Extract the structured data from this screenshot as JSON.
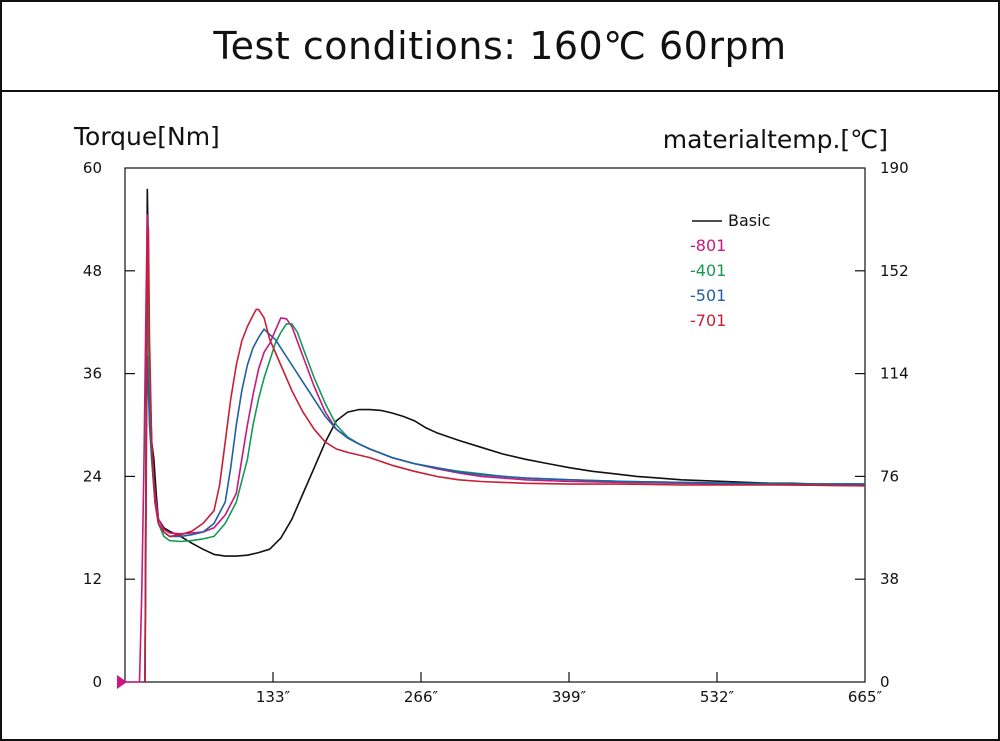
{
  "title": "Test conditions: 160℃ 60rpm",
  "chart_data": {
    "type": "line",
    "title": "Test conditions: 160℃ 60rpm",
    "ylabel": "Torque[Nm]",
    "y2label": "materialtemp.[℃]",
    "xlabel": "",
    "xlim": [
      0,
      665
    ],
    "ylim": [
      0,
      60
    ],
    "y2lim": [
      0,
      190
    ],
    "x_ticks": [
      133,
      266,
      399,
      532,
      665
    ],
    "x_tick_labels": [
      "133″",
      "266″",
      "399″",
      "532″",
      "665″"
    ],
    "y_ticks": [
      0,
      12,
      24,
      36,
      48,
      60
    ],
    "y_tick_labels": [
      "0",
      "12",
      "24",
      "36",
      "48",
      "60"
    ],
    "y2_ticks": [
      0,
      38,
      76,
      114,
      152,
      190
    ],
    "y2_tick_labels": [
      "0",
      "38",
      "76",
      "114",
      "152",
      "190"
    ],
    "grid": false,
    "legend_position": "top-right",
    "series": [
      {
        "name": "Basic",
        "color": "#111111",
        "legend_prefix": "—— ",
        "points": [
          [
            18,
            0
          ],
          [
            19,
            30
          ],
          [
            20,
            57.5
          ],
          [
            21,
            50
          ],
          [
            22,
            36
          ],
          [
            24,
            28
          ],
          [
            26,
            26
          ],
          [
            28,
            22
          ],
          [
            30,
            19
          ],
          [
            35,
            18
          ],
          [
            40,
            17.6
          ],
          [
            50,
            17
          ],
          [
            60,
            16.2
          ],
          [
            70,
            15.5
          ],
          [
            80,
            14.9
          ],
          [
            90,
            14.7
          ],
          [
            100,
            14.7
          ],
          [
            110,
            14.8
          ],
          [
            120,
            15.1
          ],
          [
            130,
            15.5
          ],
          [
            140,
            16.8
          ],
          [
            150,
            19
          ],
          [
            160,
            22
          ],
          [
            170,
            25
          ],
          [
            180,
            28
          ],
          [
            190,
            30.5
          ],
          [
            200,
            31.5
          ],
          [
            210,
            31.8
          ],
          [
            220,
            31.8
          ],
          [
            230,
            31.7
          ],
          [
            240,
            31.4
          ],
          [
            250,
            31
          ],
          [
            260,
            30.5
          ],
          [
            270,
            29.7
          ],
          [
            280,
            29.1
          ],
          [
            300,
            28.2
          ],
          [
            320,
            27.4
          ],
          [
            340,
            26.6
          ],
          [
            360,
            26
          ],
          [
            380,
            25.5
          ],
          [
            400,
            25
          ],
          [
            420,
            24.6
          ],
          [
            440,
            24.3
          ],
          [
            460,
            24
          ],
          [
            480,
            23.8
          ],
          [
            500,
            23.6
          ],
          [
            520,
            23.5
          ],
          [
            540,
            23.4
          ],
          [
            560,
            23.3
          ],
          [
            580,
            23.2
          ],
          [
            600,
            23.2
          ],
          [
            620,
            23.1
          ],
          [
            640,
            23.1
          ],
          [
            665,
            23.1
          ]
        ]
      },
      {
        "name": "-801",
        "color": "#c8187e",
        "legend_prefix": "",
        "points": [
          [
            0,
            0
          ],
          [
            10,
            0
          ],
          [
            13,
            0
          ],
          [
            15,
            10
          ],
          [
            17,
            25
          ],
          [
            18,
            35
          ],
          [
            19,
            45
          ],
          [
            20,
            54.5
          ],
          [
            21,
            45
          ],
          [
            22,
            34
          ],
          [
            24,
            27
          ],
          [
            27,
            22
          ],
          [
            30,
            19
          ],
          [
            35,
            17.8
          ],
          [
            40,
            17.4
          ],
          [
            50,
            17.3
          ],
          [
            60,
            17.4
          ],
          [
            70,
            17.5
          ],
          [
            80,
            18
          ],
          [
            90,
            19.5
          ],
          [
            100,
            22
          ],
          [
            105,
            26
          ],
          [
            110,
            30
          ],
          [
            115,
            33.5
          ],
          [
            120,
            36.5
          ],
          [
            125,
            38.5
          ],
          [
            130,
            39.5
          ],
          [
            135,
            41
          ],
          [
            140,
            42.5
          ],
          [
            145,
            42.4
          ],
          [
            150,
            41.5
          ],
          [
            160,
            38
          ],
          [
            170,
            34.5
          ],
          [
            180,
            31.5
          ],
          [
            190,
            29.5
          ],
          [
            200,
            28.5
          ],
          [
            210,
            27.8
          ],
          [
            220,
            27.2
          ],
          [
            240,
            26.2
          ],
          [
            260,
            25.5
          ],
          [
            280,
            24.9
          ],
          [
            300,
            24.4
          ],
          [
            320,
            24
          ],
          [
            340,
            23.8
          ],
          [
            360,
            23.6
          ],
          [
            380,
            23.5
          ],
          [
            400,
            23.4
          ],
          [
            450,
            23.3
          ],
          [
            500,
            23.2
          ],
          [
            550,
            23.1
          ],
          [
            600,
            23
          ],
          [
            665,
            22.9
          ]
        ]
      },
      {
        "name": "-401",
        "color": "#159a55",
        "legend_prefix": "",
        "points": [
          [
            18,
            0
          ],
          [
            19,
            28
          ],
          [
            20,
            46
          ],
          [
            21,
            40
          ],
          [
            22,
            32
          ],
          [
            24,
            26
          ],
          [
            27,
            21
          ],
          [
            30,
            18.5
          ],
          [
            35,
            17
          ],
          [
            40,
            16.5
          ],
          [
            50,
            16.4
          ],
          [
            60,
            16.5
          ],
          [
            70,
            16.7
          ],
          [
            80,
            17
          ],
          [
            90,
            18.5
          ],
          [
            100,
            21
          ],
          [
            110,
            26
          ],
          [
            115,
            30
          ],
          [
            120,
            33
          ],
          [
            125,
            35.5
          ],
          [
            130,
            37.5
          ],
          [
            135,
            39.5
          ],
          [
            140,
            40.8
          ],
          [
            145,
            41.8
          ],
          [
            150,
            41.8
          ],
          [
            155,
            40.8
          ],
          [
            160,
            39
          ],
          [
            170,
            35.5
          ],
          [
            180,
            32.5
          ],
          [
            190,
            30
          ],
          [
            200,
            28.6
          ],
          [
            210,
            27.8
          ],
          [
            220,
            27.2
          ],
          [
            240,
            26.2
          ],
          [
            260,
            25.5
          ],
          [
            280,
            25
          ],
          [
            300,
            24.6
          ],
          [
            320,
            24.3
          ],
          [
            340,
            24
          ],
          [
            360,
            23.8
          ],
          [
            400,
            23.6
          ],
          [
            450,
            23.4
          ],
          [
            500,
            23.3
          ],
          [
            550,
            23.2
          ],
          [
            600,
            23.1
          ],
          [
            665,
            23.1
          ]
        ]
      },
      {
        "name": "-501",
        "color": "#1f5fa6",
        "legend_prefix": "",
        "points": [
          [
            18,
            0
          ],
          [
            19,
            26
          ],
          [
            20,
            38
          ],
          [
            21,
            34
          ],
          [
            22,
            30
          ],
          [
            24,
            26
          ],
          [
            27,
            21
          ],
          [
            30,
            18.5
          ],
          [
            35,
            17.5
          ],
          [
            40,
            17
          ],
          [
            50,
            17
          ],
          [
            60,
            17.2
          ],
          [
            70,
            17.5
          ],
          [
            80,
            18.5
          ],
          [
            90,
            21
          ],
          [
            95,
            25
          ],
          [
            100,
            30
          ],
          [
            105,
            34
          ],
          [
            110,
            37
          ],
          [
            115,
            39
          ],
          [
            120,
            40.2
          ],
          [
            125,
            41.2
          ],
          [
            128,
            40.8
          ],
          [
            135,
            40
          ],
          [
            140,
            39
          ],
          [
            150,
            37
          ],
          [
            160,
            35
          ],
          [
            170,
            33
          ],
          [
            180,
            31
          ],
          [
            190,
            29.5
          ],
          [
            200,
            28.5
          ],
          [
            210,
            27.8
          ],
          [
            220,
            27.2
          ],
          [
            240,
            26.2
          ],
          [
            260,
            25.5
          ],
          [
            280,
            25
          ],
          [
            300,
            24.5
          ],
          [
            320,
            24.2
          ],
          [
            340,
            24
          ],
          [
            360,
            23.8
          ],
          [
            400,
            23.6
          ],
          [
            450,
            23.4
          ],
          [
            500,
            23.3
          ],
          [
            550,
            23.2
          ],
          [
            600,
            23.1
          ],
          [
            665,
            23.1
          ]
        ]
      },
      {
        "name": "-701",
        "color": "#c81e36",
        "legend_prefix": "",
        "points": [
          [
            18,
            0
          ],
          [
            19,
            20
          ],
          [
            20,
            48
          ],
          [
            21,
            53
          ],
          [
            22,
            40
          ],
          [
            24,
            28
          ],
          [
            27,
            21
          ],
          [
            30,
            18.5
          ],
          [
            35,
            17.5
          ],
          [
            40,
            17
          ],
          [
            50,
            17.2
          ],
          [
            60,
            17.6
          ],
          [
            70,
            18.5
          ],
          [
            80,
            20
          ],
          [
            85,
            23
          ],
          [
            90,
            28
          ],
          [
            95,
            33
          ],
          [
            100,
            37
          ],
          [
            105,
            39.8
          ],
          [
            110,
            41.5
          ],
          [
            115,
            42.8
          ],
          [
            118,
            43.5
          ],
          [
            120,
            43.5
          ],
          [
            125,
            42.5
          ],
          [
            130,
            40
          ],
          [
            140,
            37
          ],
          [
            150,
            34
          ],
          [
            160,
            31.5
          ],
          [
            170,
            29.5
          ],
          [
            180,
            28
          ],
          [
            190,
            27.2
          ],
          [
            200,
            26.8
          ],
          [
            220,
            26.2
          ],
          [
            240,
            25.3
          ],
          [
            260,
            24.6
          ],
          [
            280,
            24
          ],
          [
            300,
            23.6
          ],
          [
            320,
            23.4
          ],
          [
            340,
            23.3
          ],
          [
            360,
            23.2
          ],
          [
            400,
            23.1
          ],
          [
            450,
            23.1
          ],
          [
            500,
            23
          ],
          [
            550,
            23
          ],
          [
            600,
            23
          ],
          [
            665,
            22.9
          ]
        ]
      }
    ]
  }
}
